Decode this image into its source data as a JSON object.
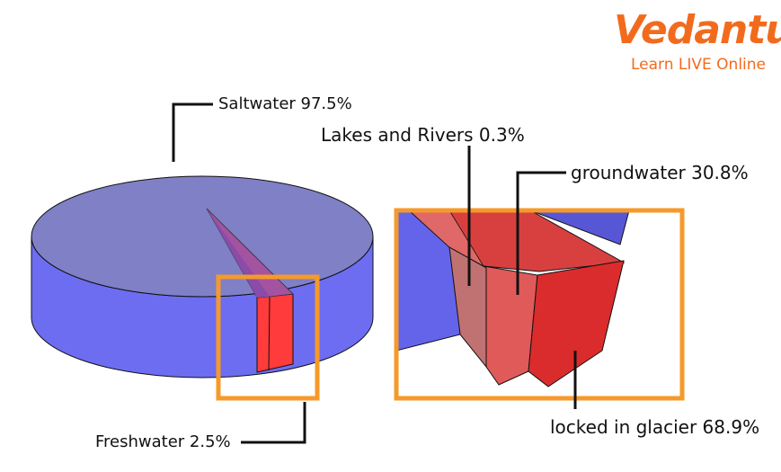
{
  "logo": {
    "wordmark": "Vedantu",
    "tagline": "Learn LIVE Online",
    "color": "#F26B1D"
  },
  "labels": {
    "saltwater": "Saltwater  97.5%",
    "freshwater": "Freshwater 2.5%",
    "lakes_rivers": "Lakes and Rivers 0.3%",
    "groundwater": "groundwater 30.8%",
    "glacier": "locked in glacier 68.9%"
  },
  "breakdown": {
    "total_water": [
      {
        "name": "Saltwater",
        "percent": 97.5
      },
      {
        "name": "Freshwater",
        "percent": 2.5
      }
    ],
    "freshwater": [
      {
        "name": "Lakes and Rivers",
        "percent": 0.3
      },
      {
        "name": "groundwater",
        "percent": 30.8
      },
      {
        "name": "locked in glacier",
        "percent": 68.9
      }
    ]
  },
  "colors": {
    "saltwater_top": "#7F80C6",
    "saltwater_side": "#6D6DF2",
    "freshwater_red": "#FF3B3B",
    "groundwater": "#E05A5A",
    "glacier": "#DA2C2C",
    "lakes": "#C07272",
    "highlight_box": "#F59A2A"
  }
}
